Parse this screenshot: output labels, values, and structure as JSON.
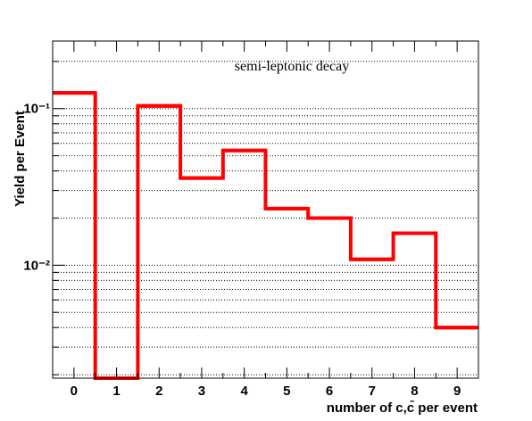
{
  "chart_data": {
    "type": "bar",
    "style": "step-histogram",
    "title": "",
    "annotation": "semi-leptonic decay",
    "xlabel": "number of c,c̄ per event",
    "ylabel": "Yield per Event",
    "x_ticks": [
      "0",
      "1",
      "2",
      "3",
      "4",
      "5",
      "6",
      "7",
      "8",
      "9"
    ],
    "y_scale": "log",
    "y_tick_labels": {
      "1e-1": "10⁻¹",
      "1e-2": "10⁻²"
    },
    "xlim": [
      -0.5,
      9.5
    ],
    "ylim": [
      0.0019,
      0.27
    ],
    "grid": "horizontal dotted",
    "series": [
      {
        "color": "#ff0000",
        "bin_edges": [
          -0.5,
          0.5,
          1.5,
          2.5,
          3.5,
          4.5,
          5.5,
          6.5,
          7.5,
          8.5,
          9.5
        ],
        "values": [
          0.126,
          0.0019,
          0.104,
          0.036,
          0.054,
          0.023,
          0.02,
          0.0109,
          0.016,
          0.004
        ]
      }
    ]
  }
}
